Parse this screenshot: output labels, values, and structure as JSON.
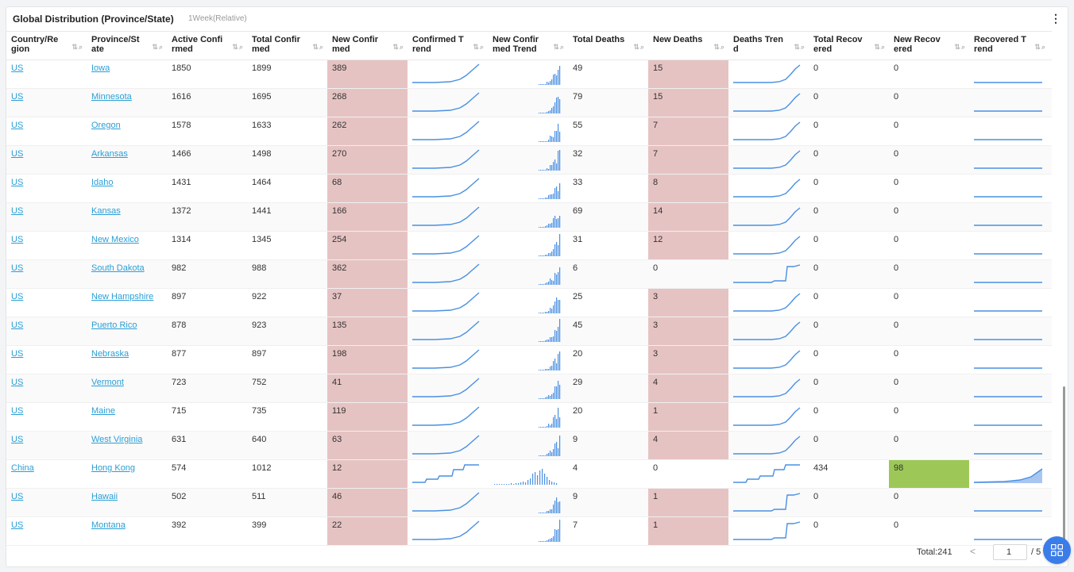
{
  "header": {
    "title": "Global Distribution (Province/State)",
    "subtitle": "1Week(Relative)"
  },
  "columns": [
    {
      "label": "Country/Region",
      "l1": "Country/Re",
      "l2": "gion"
    },
    {
      "label": "Province/State",
      "l1": "Province/St",
      "l2": "ate"
    },
    {
      "label": "Active Confirmed",
      "l1": "Active Confi",
      "l2": "rmed"
    },
    {
      "label": "Total Confirmed",
      "l1": "Total Confir",
      "l2": "med"
    },
    {
      "label": "New Confirmed",
      "l1": "New Confir",
      "l2": "med"
    },
    {
      "label": "Confirmed Trend",
      "l1": "Confirmed T",
      "l2": "rend"
    },
    {
      "label": "New Confirmed Trend",
      "l1": "New Confir",
      "l2": "med Trend"
    },
    {
      "label": "Total Deaths",
      "l1": "Total Deaths",
      "l2": ""
    },
    {
      "label": "New Deaths",
      "l1": "New Deaths",
      "l2": ""
    },
    {
      "label": "Deaths Trend",
      "l1": "Deaths Tren",
      "l2": "d"
    },
    {
      "label": "Total Recovered",
      "l1": "Total Recov",
      "l2": "ered"
    },
    {
      "label": "New Recovered",
      "l1": "New Recov",
      "l2": "ered"
    },
    {
      "label": "Recovered Trend",
      "l1": "Recovered T",
      "l2": "rend"
    }
  ],
  "rows": [
    {
      "country": "US",
      "province": "Iowa",
      "active": "1850",
      "total": "1899",
      "new": "389",
      "deaths": "49",
      "newDeaths": "15",
      "recovered": "0",
      "newRecovered": "0"
    },
    {
      "country": "US",
      "province": "Minnesota",
      "active": "1616",
      "total": "1695",
      "new": "268",
      "deaths": "79",
      "newDeaths": "15",
      "recovered": "0",
      "newRecovered": "0"
    },
    {
      "country": "US",
      "province": "Oregon",
      "active": "1578",
      "total": "1633",
      "new": "262",
      "deaths": "55",
      "newDeaths": "7",
      "recovered": "0",
      "newRecovered": "0"
    },
    {
      "country": "US",
      "province": "Arkansas",
      "active": "1466",
      "total": "1498",
      "new": "270",
      "deaths": "32",
      "newDeaths": "7",
      "recovered": "0",
      "newRecovered": "0"
    },
    {
      "country": "US",
      "province": "Idaho",
      "active": "1431",
      "total": "1464",
      "new": "68",
      "deaths": "33",
      "newDeaths": "8",
      "recovered": "0",
      "newRecovered": "0"
    },
    {
      "country": "US",
      "province": "Kansas",
      "active": "1372",
      "total": "1441",
      "new": "166",
      "deaths": "69",
      "newDeaths": "14",
      "recovered": "0",
      "newRecovered": "0"
    },
    {
      "country": "US",
      "province": "New Mexico",
      "active": "1314",
      "total": "1345",
      "new": "254",
      "deaths": "31",
      "newDeaths": "12",
      "recovered": "0",
      "newRecovered": "0"
    },
    {
      "country": "US",
      "province": "South Dakota",
      "active": "982",
      "total": "988",
      "new": "362",
      "deaths": "6",
      "newDeaths": "0",
      "recovered": "0",
      "newRecovered": "0"
    },
    {
      "country": "US",
      "province": "New Hampshire",
      "active": "897",
      "total": "922",
      "new": "37",
      "deaths": "25",
      "newDeaths": "3",
      "recovered": "0",
      "newRecovered": "0"
    },
    {
      "country": "US",
      "province": "Puerto Rico",
      "active": "878",
      "total": "923",
      "new": "135",
      "deaths": "45",
      "newDeaths": "3",
      "recovered": "0",
      "newRecovered": "0"
    },
    {
      "country": "US",
      "province": "Nebraska",
      "active": "877",
      "total": "897",
      "new": "198",
      "deaths": "20",
      "newDeaths": "3",
      "recovered": "0",
      "newRecovered": "0"
    },
    {
      "country": "US",
      "province": "Vermont",
      "active": "723",
      "total": "752",
      "new": "41",
      "deaths": "29",
      "newDeaths": "4",
      "recovered": "0",
      "newRecovered": "0"
    },
    {
      "country": "US",
      "province": "Maine",
      "active": "715",
      "total": "735",
      "new": "119",
      "deaths": "20",
      "newDeaths": "1",
      "recovered": "0",
      "newRecovered": "0"
    },
    {
      "country": "US",
      "province": "West Virginia",
      "active": "631",
      "total": "640",
      "new": "63",
      "deaths": "9",
      "newDeaths": "4",
      "recovered": "0",
      "newRecovered": "0"
    },
    {
      "country": "China",
      "province": "Hong Kong",
      "active": "574",
      "total": "1012",
      "new": "12",
      "deaths": "4",
      "newDeaths": "0",
      "recovered": "434",
      "newRecovered": "98"
    },
    {
      "country": "US",
      "province": "Hawaii",
      "active": "502",
      "total": "511",
      "new": "46",
      "deaths": "9",
      "newDeaths": "1",
      "recovered": "0",
      "newRecovered": "0"
    },
    {
      "country": "US",
      "province": "Montana",
      "active": "392",
      "total": "399",
      "new": "22",
      "deaths": "7",
      "newDeaths": "1",
      "recovered": "0",
      "newRecovered": "0"
    }
  ],
  "footer": {
    "total": "Total:241",
    "prev": "<",
    "page": "1",
    "pages": "/ 5"
  },
  "colors": {
    "highlightRed": "#e6c3c3",
    "highlightGreen": "#9dc857",
    "link": "#2a9fd6",
    "spark": "#4a90e2",
    "fab": "#3b7de8"
  },
  "icons": {
    "sort": "sort-icon",
    "search": "search-icon",
    "menu": "kebab-menu-icon",
    "fab": "grid-icon"
  }
}
